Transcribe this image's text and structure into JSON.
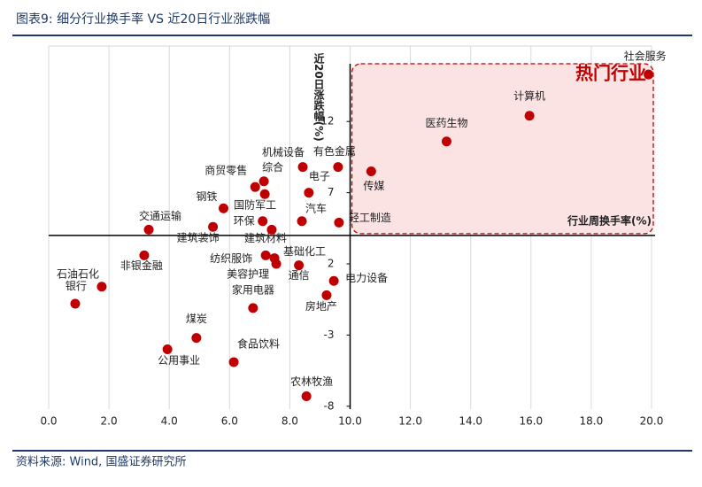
{
  "chart_data": {
    "type": "scatter",
    "title": "图表9: 细分行业换手率 VS 近20日行业涨跌幅",
    "source": "资料来源: Wind, 国盛证券研究所",
    "x_label": "行业周换手率(%)",
    "y_label": "近20日涨跌幅(%)",
    "highlight_label": "热门行业",
    "point_labels": [
      "社会服务",
      "计算机",
      "医药生物",
      "传媒",
      "有色金属",
      "机械设备",
      "电子",
      "汽车",
      "轻工制造",
      "综合",
      "商贸零售",
      "国防军工",
      "钢铁",
      "环保",
      "建筑材料",
      "建筑装饰",
      "交通运输",
      "非银金融",
      "银行",
      "石油石化",
      "纺织服饰",
      "基础化工",
      "美容护理",
      "通信",
      "电力设备",
      "房地产",
      "家用电器",
      "煤炭",
      "食品饮料",
      "公用事业",
      "农林牧渔"
    ],
    "x": [
      19.9,
      15.95,
      13.2,
      10.7,
      9.6,
      8.43,
      8.63,
      8.4,
      9.63,
      7.14,
      6.85,
      7.17,
      5.8,
      7.1,
      7.4,
      5.45,
      3.32,
      3.17,
      1.76,
      0.88,
      7.2,
      7.49,
      7.55,
      8.3,
      9.46,
      9.22,
      6.78,
      4.9,
      6.14,
      3.94,
      8.55
    ],
    "series": [
      {
        "name": "行业",
        "color": "#c00000",
        "values": [
          15.3,
          12.4,
          10.6,
          8.5,
          8.8,
          8.8,
          7.0,
          5.0,
          4.9,
          7.8,
          7.4,
          6.9,
          5.9,
          5.0,
          4.4,
          4.6,
          4.4,
          2.6,
          0.4,
          -0.8,
          2.6,
          2.4,
          2.0,
          1.9,
          0.8,
          -0.2,
          -1.1,
          -3.2,
          -4.9,
          -4.0,
          -7.3
        ]
      }
    ],
    "xlim": [
      0,
      20
    ],
    "ylim": [
      -8.2,
      17.3
    ],
    "xticks": [
      {
        "value": 0,
        "label": "0.0"
      },
      {
        "value": 2,
        "label": "2.0"
      },
      {
        "value": 4,
        "label": "4.0"
      },
      {
        "value": 6,
        "label": "6.0"
      },
      {
        "value": 8,
        "label": "8.0"
      },
      {
        "value": 10,
        "label": "10.0"
      },
      {
        "value": 12,
        "label": "12.0"
      },
      {
        "value": 14,
        "label": "14.0"
      },
      {
        "value": 16,
        "label": "16.0"
      },
      {
        "value": 18,
        "label": "18.0"
      },
      {
        "value": 20,
        "label": "20.0"
      }
    ],
    "yticks": [
      12,
      7,
      2,
      -3,
      -8
    ],
    "x_axis_at": 4,
    "y_axis_at": 10,
    "grid": true
  }
}
